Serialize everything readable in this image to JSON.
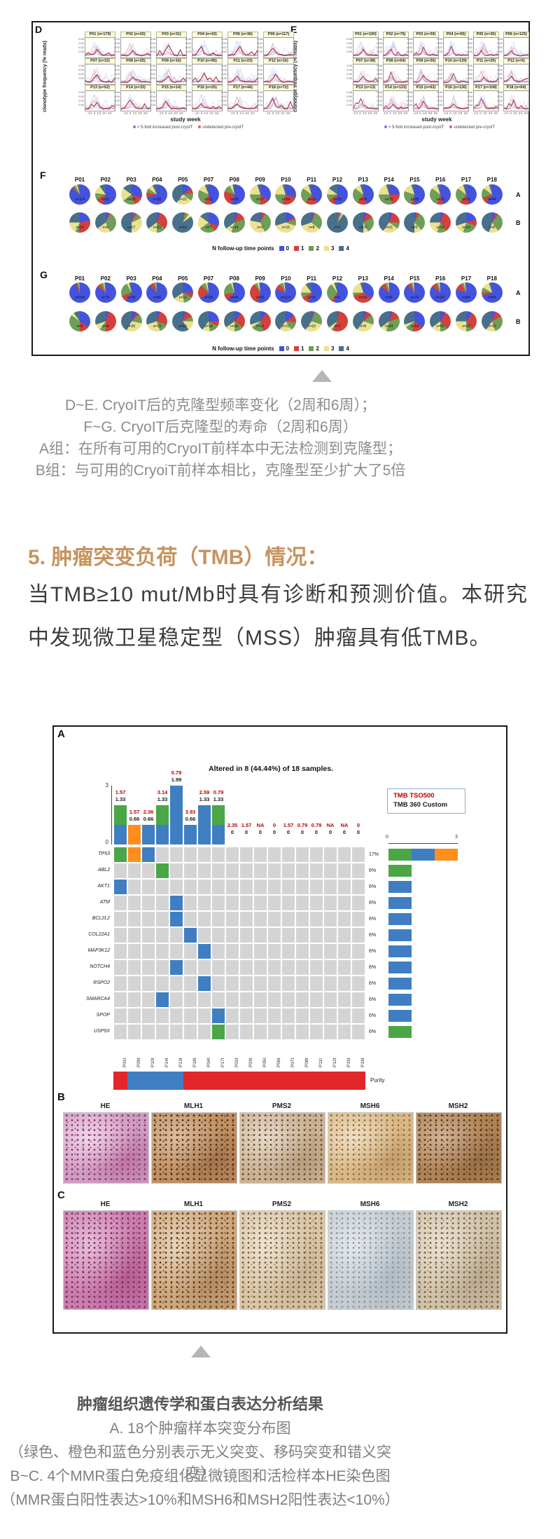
{
  "figure1": {
    "panels_DE": {
      "ylabel": "clonotype frequency (% reads)",
      "xlabel": "study week",
      "xticks": "-10 0 10 20 30",
      "ytick_sample": [
        "0.06",
        "0.04",
        "0.02",
        "0.00"
      ],
      "legend": [
        {
          "label": "> 5-fold increased post-cryoIT",
          "color": "#7b7bdf"
        },
        {
          "label": "undetected pre-cryoIT",
          "color": "#dc6257"
        }
      ],
      "D": {
        "label": "D",
        "subplots": [
          "P01 (n=179)",
          "P02 (n=20)",
          "P03 (n=31)",
          "P04 (n=43)",
          "P05 (n=36)",
          "P06 (n=117)",
          "P07 (n=15)",
          "P08 (n=25)",
          "P09 (n=16)",
          "P10 (n=95)",
          "P11 (n=23)",
          "P12 (n=16)",
          "P13 (n=52)",
          "P14 (n=33)",
          "P15 (n=14)",
          "P16 (n=25)",
          "P17 (n=44)",
          "P18 (n=72)"
        ]
      },
      "E": {
        "label": "E",
        "subplots": [
          "P01 (n=190)",
          "P02 (n=79)",
          "P03 (n=39)",
          "P04 (n=65)",
          "P05 (n=30)",
          "P06 (n=125)",
          "P07 (n=38)",
          "P08 (n=64)",
          "P09 (n=30)",
          "P10 (n=139)",
          "P11 (n=20)",
          "P12 (n=5)",
          "P13 (n=13)",
          "P14 (n=133)",
          "P15 (n=63)",
          "P16 (n=136)",
          "P17 (n=108)",
          "P18 (n=64)"
        ]
      }
    },
    "pie_colors": {
      "c0": "#4453dd",
      "c1": "#d2413a",
      "c2": "#6e9e57",
      "c3": "#ebe18f",
      "c4": "#49708a"
    },
    "followup_legend": {
      "title": "N follow-up time points",
      "items": [
        "0",
        "1",
        "2",
        "3",
        "4"
      ]
    },
    "pie_columns": [
      "P01",
      "P02",
      "P03",
      "P04",
      "P05",
      "P07",
      "P08",
      "P09",
      "P10",
      "P11",
      "P12",
      "P13",
      "P14",
      "P15",
      "P16",
      "P17",
      "P18"
    ],
    "panel_F": {
      "label": "F",
      "rowA_label": "A",
      "rowB_label": "B",
      "rowA": [
        {
          "n": "n=114",
          "s": [
            86,
            3,
            4,
            3,
            4
          ]
        },
        {
          "n": "n=21",
          "s": [
            55,
            12,
            10,
            13,
            10
          ]
        },
        {
          "n": "n=18",
          "s": [
            30,
            15,
            20,
            20,
            15
          ]
        },
        {
          "n": "n=28",
          "s": [
            70,
            8,
            7,
            8,
            7
          ]
        },
        {
          "n": "n=22",
          "s": [
            15,
            8,
            12,
            25,
            40
          ]
        },
        {
          "n": "n=15",
          "s": [
            45,
            12,
            25,
            12,
            6
          ]
        },
        {
          "n": "n=30",
          "s": [
            55,
            25,
            12,
            5,
            3
          ]
        },
        {
          "n": "n=17",
          "s": [
            35,
            15,
            25,
            20,
            5
          ]
        },
        {
          "n": "n=34",
          "s": [
            30,
            25,
            20,
            20,
            5
          ]
        },
        {
          "n": "n=18",
          "s": [
            40,
            20,
            25,
            10,
            5
          ]
        },
        {
          "n": "n=20",
          "s": [
            55,
            10,
            10,
            10,
            15
          ]
        },
        {
          "n": "n=30",
          "s": [
            45,
            15,
            25,
            10,
            5
          ]
        },
        {
          "n": "n=15",
          "s": [
            25,
            20,
            30,
            20,
            5
          ]
        },
        {
          "n": "n=35",
          "s": [
            50,
            5,
            25,
            15,
            5
          ]
        },
        {
          "n": "n=16",
          "s": [
            45,
            10,
            30,
            10,
            5
          ]
        },
        {
          "n": "n=25",
          "s": [
            45,
            15,
            25,
            10,
            5
          ]
        },
        {
          "n": "n=44",
          "s": [
            60,
            10,
            15,
            10,
            5
          ]
        }
      ],
      "rowB": [
        {
          "n": "n=16",
          "s": [
            22,
            30,
            5,
            18,
            25
          ]
        },
        {
          "n": "n=8",
          "s": [
            5,
            3,
            35,
            22,
            35
          ]
        },
        {
          "n": "n=17",
          "s": [
            3,
            5,
            10,
            32,
            50
          ]
        },
        {
          "n": "n=22",
          "s": [
            5,
            30,
            15,
            15,
            35
          ]
        },
        {
          "n": "n=16",
          "s": [
            2,
            2,
            6,
            5,
            85
          ]
        },
        {
          "n": "n=7",
          "s": [
            30,
            10,
            25,
            20,
            15
          ]
        },
        {
          "n": "n=14",
          "s": [
            5,
            15,
            35,
            10,
            35
          ]
        },
        {
          "n": "n=3",
          "s": [
            3,
            5,
            35,
            35,
            22
          ]
        },
        {
          "n": "n=16",
          "s": [
            15,
            5,
            10,
            40,
            30
          ]
        },
        {
          "n": "n=8",
          "s": [
            3,
            3,
            30,
            34,
            30
          ]
        },
        {
          "n": "n=1",
          "s": [
            2,
            2,
            3,
            3,
            90
          ]
        },
        {
          "n": "n=15",
          "s": [
            5,
            12,
            25,
            8,
            50
          ]
        },
        {
          "n": "n=21",
          "s": [
            5,
            20,
            10,
            25,
            40
          ]
        },
        {
          "n": "n=5",
          "s": [
            3,
            5,
            30,
            12,
            50
          ]
        },
        {
          "n": "n=16",
          "s": [
            5,
            35,
            15,
            20,
            25
          ]
        },
        {
          "n": "n=19",
          "s": [
            20,
            10,
            25,
            15,
            30
          ]
        },
        {
          "n": "n=8",
          "s": [
            5,
            5,
            30,
            15,
            45
          ]
        }
      ]
    },
    "panel_G": {
      "label": "G",
      "rowA_label": "A",
      "rowB_label": "B",
      "rowA": [
        {
          "n": "n=159",
          "s": [
            93,
            3,
            2,
            1,
            1
          ]
        },
        {
          "n": "n=76",
          "s": [
            85,
            6,
            5,
            2,
            2
          ]
        },
        {
          "n": "n=28",
          "s": [
            60,
            10,
            22,
            4,
            4
          ]
        },
        {
          "n": "n=56",
          "s": [
            88,
            7,
            3,
            1,
            1
          ]
        },
        {
          "n": "n=11",
          "s": [
            25,
            8,
            15,
            17,
            35
          ]
        },
        {
          "n": "n=29",
          "s": [
            65,
            22,
            8,
            3,
            2
          ]
        },
        {
          "n": "n=44",
          "s": [
            62,
            10,
            22,
            3,
            3
          ]
        },
        {
          "n": "n=26",
          "s": [
            55,
            35,
            5,
            3,
            2
          ]
        },
        {
          "n": "n=121",
          "s": [
            80,
            10,
            6,
            2,
            2
          ]
        },
        {
          "n": "n=15",
          "s": [
            55,
            12,
            8,
            15,
            10
          ]
        },
        {
          "n": "n=6",
          "s": [
            55,
            5,
            30,
            5,
            5
          ]
        },
        {
          "n": "n=10",
          "s": [
            35,
            35,
            5,
            20,
            5
          ]
        },
        {
          "n": "n=91",
          "s": [
            85,
            8,
            4,
            2,
            1
          ]
        },
        {
          "n": "n=76",
          "s": [
            88,
            6,
            3,
            2,
            1
          ]
        },
        {
          "n": "n=107",
          "s": [
            85,
            8,
            4,
            2,
            1
          ]
        },
        {
          "n": "n=94",
          "s": [
            80,
            12,
            4,
            2,
            2
          ]
        },
        {
          "n": "n=84",
          "s": [
            70,
            5,
            8,
            12,
            5
          ]
        }
      ],
      "rowB": [
        {
          "n": "n=3",
          "s": [
            35,
            15,
            35,
            5,
            10
          ]
        },
        {
          "n": "n=9",
          "s": [
            5,
            45,
            10,
            10,
            30
          ]
        },
        {
          "n": "n=26",
          "s": [
            8,
            5,
            15,
            30,
            42
          ]
        },
        {
          "n": "n=13",
          "s": [
            5,
            25,
            15,
            25,
            30
          ]
        },
        {
          "n": "n=15",
          "s": [
            5,
            12,
            8,
            15,
            60
          ]
        },
        {
          "n": "n=14",
          "s": [
            25,
            8,
            15,
            12,
            40
          ]
        },
        {
          "n": "n=36",
          "s": [
            10,
            25,
            15,
            15,
            35
          ]
        },
        {
          "n": "n=13",
          "s": [
            10,
            35,
            20,
            5,
            30
          ]
        },
        {
          "n": "n=21",
          "s": [
            15,
            12,
            13,
            20,
            40
          ]
        },
        {
          "n": "n=18",
          "s": [
            3,
            2,
            25,
            30,
            40
          ]
        },
        {
          "n": "n=2",
          "s": [
            2,
            55,
            3,
            5,
            35
          ]
        },
        {
          "n": "n=8",
          "s": [
            5,
            10,
            15,
            30,
            40
          ]
        },
        {
          "n": "n=34",
          "s": [
            5,
            15,
            35,
            10,
            35
          ]
        },
        {
          "n": "n=14",
          "s": [
            35,
            18,
            12,
            5,
            30
          ]
        },
        {
          "n": "n=60",
          "s": [
            8,
            30,
            12,
            15,
            35
          ]
        },
        {
          "n": "n=29",
          "s": [
            10,
            30,
            10,
            25,
            25
          ]
        },
        {
          "n": "n=16",
          "s": [
            5,
            12,
            28,
            15,
            40
          ]
        }
      ]
    }
  },
  "caption1": {
    "lines": [
      "D~E. CryoIT后的克隆型频率变化（2周和6周）；",
      "F~G. CryoIT后克隆型的寿命（2周和6周）",
      "A组：在所有可用的CryoIT前样本中无法检测到克隆型；",
      "B组：与可用的CryoiT前样本相比，克隆型至少扩大了5倍"
    ]
  },
  "section": {
    "heading": "5. 肿瘤突变负荷（TMB）情况：",
    "heading_color": "#c6935f",
    "body": "当TMB≥10  mut/Mb时具有诊断和预测价值。本研究中发现微卫星稳定型（MSS）肿瘤具有低TMB。"
  },
  "figure2": {
    "oncoprint": {
      "panel_label": "A",
      "title": "Altered in 8 (44.44%) of 18 samples.",
      "legend_line1": "TMB TSO500",
      "legend_line1_color": "#c00000",
      "legend_line2": "TMB 360 Custom",
      "yaxis_top": "3",
      "yaxis_bottom": "0",
      "raxis_min": "0",
      "raxis_max": "3",
      "colors": {
        "green": "#4ba647",
        "orange": "#ff8e1c",
        "blue": "#3f7fc1",
        "cell": "#d4d4d4",
        "red": "#e3262a"
      },
      "tmb_tso500": [
        "1.57",
        "1.57",
        "2.36",
        "3.14",
        "0.79",
        "3.93",
        "2.59",
        "0.79",
        "2.35",
        "1.57",
        "NA",
        "0",
        "1.57",
        "0.79",
        "0.79",
        "NA",
        "NA",
        "0"
      ],
      "tmb_360": [
        "1.33",
        "0.66",
        "0.66",
        "1.33",
        "1.99",
        "0.66",
        "1.33",
        "1.33",
        "0",
        "0",
        "0",
        "0",
        "0",
        "0",
        "0",
        "0",
        "0",
        "0"
      ],
      "bar_stacks": [
        [
          "blue",
          "green"
        ],
        [
          "orange"
        ],
        [
          "blue"
        ],
        [
          "blue",
          "green"
        ],
        [
          "blue",
          "blue",
          "blue"
        ],
        [
          "blue"
        ],
        [
          "blue",
          "blue"
        ],
        [
          "blue",
          "green"
        ],
        [],
        [],
        [],
        [],
        [],
        [],
        [],
        [],
        [],
        []
      ],
      "genes": [
        "TP53",
        "ABL2",
        "AKT1",
        "ATM",
        "BCL2L2",
        "COL22A1",
        "MAP3K12",
        "NOTCH4",
        "RSPO2",
        "SMARCA4",
        "SPOP",
        "USP9X"
      ],
      "percents": [
        "17%",
        "6%",
        "6%",
        "6%",
        "6%",
        "6%",
        "6%",
        "6%",
        "6%",
        "6%",
        "6%",
        "6%"
      ],
      "cells": [
        [
          0,
          1,
          "green"
        ],
        [
          0,
          2,
          "orange"
        ],
        [
          0,
          3,
          "blue"
        ],
        [
          1,
          4,
          "green"
        ],
        [
          2,
          1,
          "blue"
        ],
        [
          3,
          5,
          "blue"
        ],
        [
          4,
          5,
          "blue"
        ],
        [
          5,
          6,
          "blue"
        ],
        [
          6,
          7,
          "blue"
        ],
        [
          7,
          5,
          "blue"
        ],
        [
          8,
          7,
          "blue"
        ],
        [
          9,
          4,
          "blue"
        ],
        [
          10,
          8,
          "blue"
        ],
        [
          11,
          8,
          "green"
        ]
      ],
      "right_bars": [
        [
          "green",
          "blue",
          "orange"
        ],
        [
          "green"
        ],
        [
          "blue"
        ],
        [
          "blue"
        ],
        [
          "blue"
        ],
        [
          "blue"
        ],
        [
          "blue"
        ],
        [
          "blue"
        ],
        [
          "blue"
        ],
        [
          "blue"
        ],
        [
          "blue"
        ],
        [
          "green"
        ]
      ],
      "samples": [
        "P01t",
        "P09t",
        "P10t",
        "P14t",
        "P13t",
        "P18t",
        "P04t",
        "P17t",
        "P02t",
        "P03t",
        "P05t",
        "P06t",
        "P07t",
        "P08t",
        "P11t",
        "P12t",
        "P15t",
        "P16t"
      ],
      "purity_label": "Purity",
      "purity_segments": [
        {
          "color": "#e3262a",
          "cols": 1
        },
        {
          "color": "#3f7fc1",
          "cols": 4
        },
        {
          "color": "#e3262a",
          "cols": 13
        }
      ]
    },
    "panel_B": {
      "label": "B",
      "images": [
        {
          "label": "HE",
          "t": "#cf9ec2",
          "s": "#8e3570",
          "s2": "#b05a92",
          "b": "rgba(255,240,248,0.7)",
          "b2": "rgba(150,40,110,0.35)"
        },
        {
          "label": "MLH1",
          "t": "#c19064",
          "s": "#4f3015",
          "s2": "#7a4a22",
          "b": "rgba(245,235,220,0.5)",
          "b2": "rgba(90,50,20,0.3)"
        },
        {
          "label": "PMS2",
          "t": "#cdb394",
          "s": "#6b4a28",
          "s2": "#8d9cab",
          "b": "rgba(248,244,238,0.6)",
          "b2": "rgba(120,90,60,0.25)"
        },
        {
          "label": "MSH6",
          "t": "#d8b98b",
          "s": "#9a6a2e",
          "s2": "#c09a58",
          "b": "rgba(250,245,235,0.65)",
          "b2": "rgba(140,90,40,0.3)"
        },
        {
          "label": "MSH2",
          "t": "#b08356",
          "s": "#53351a",
          "s2": "#7d5630",
          "b": "rgba(245,238,228,0.45)",
          "b2": "rgba(90,60,30,0.3)"
        }
      ]
    },
    "panel_C": {
      "label": "C",
      "images": [
        {
          "label": "HE",
          "t": "#c87fae",
          "s": "#86275f",
          "s2": "#a84c86",
          "b": "rgba(250,235,245,0.6)",
          "b2": "rgba(140,30,95,0.35)"
        },
        {
          "label": "MLH1",
          "t": "#cda87e",
          "s": "#5e3a1b",
          "s2": "#8a5e30",
          "b": "rgba(248,240,228,0.6)",
          "b2": "rgba(110,70,35,0.3)"
        },
        {
          "label": "PMS2",
          "t": "#d9c6a9",
          "s": "#7b5a34",
          "s2": "#a6906c",
          "b": "rgba(250,246,240,0.6)",
          "b2": "rgba(150,120,90,0.25)"
        },
        {
          "label": "MSH6",
          "t": "#c6ccd1",
          "s": "#8797a3",
          "s2": "#aab6bf",
          "b": "rgba(250,250,252,0.6)",
          "b2": "rgba(130,150,165,0.3)"
        },
        {
          "label": "MSH2",
          "t": "#cfc2ab",
          "s": "#7a5c38",
          "s2": "#a4906f",
          "b": "rgba(250,247,240,0.6)",
          "b2": "rgba(120,95,65,0.25)"
        }
      ]
    }
  },
  "caption2": {
    "title": "肿瘤组织遗传学和蛋白表达分析结果",
    "lines": [
      "A. 18个肿瘤样本突变分布图",
      "（绿色、橙色和蓝色分别表示无义突变、移码突变和错义突变）",
      "B~C. 4个MMR蛋白免疫组化显微镜图和活检样本HE染色图",
      "（MMR蛋白阳性表达>10%和MSH6和MSH2阳性表达<10%）"
    ]
  }
}
